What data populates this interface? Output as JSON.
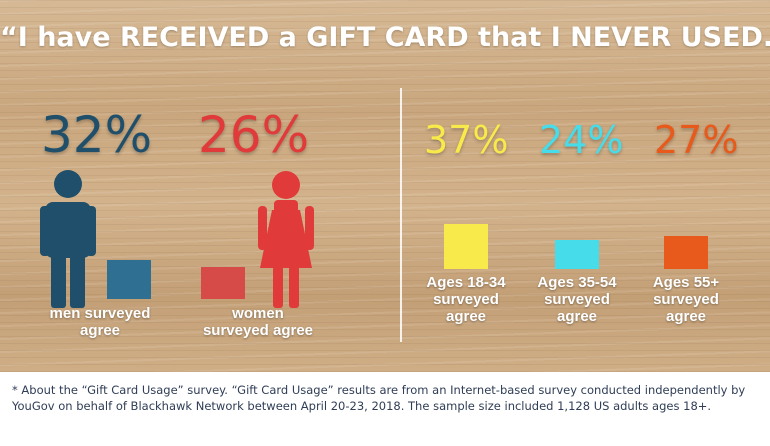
{
  "headline": "“I have RECEIVED a GIFT CARD that I NEVER USED.”",
  "chart_data": [
    {
      "type": "bar",
      "categories": [
        "men surveyed agree",
        "women surveyed agree"
      ],
      "values": [
        32,
        26
      ],
      "value_labels": [
        "32%",
        "26%"
      ],
      "unit": "%",
      "colors": [
        "#1f4f6a",
        "#e13a3a"
      ],
      "bar_colors": [
        "#2f6f92",
        "#d64a48"
      ],
      "icons": [
        "man-figure-icon",
        "woman-figure-icon"
      ]
    },
    {
      "type": "bar",
      "categories": [
        "Ages 18-34 surveyed agree",
        "Ages 35-54 surveyed agree",
        "Ages 55+ surveyed agree"
      ],
      "values": [
        37,
        24,
        27
      ],
      "value_labels": [
        "37%",
        "24%",
        "27%"
      ],
      "unit": "%",
      "colors": [
        "#f7ea4a",
        "#46dcea",
        "#e8591c"
      ]
    }
  ],
  "labels": {
    "men": [
      "men surveyed",
      "agree"
    ],
    "women": [
      "women",
      "surveyed agree"
    ],
    "age1": [
      "Ages 18-34",
      "surveyed",
      "agree"
    ],
    "age2": [
      "Ages 35-54",
      "surveyed",
      "agree"
    ],
    "age3": [
      "Ages 55+",
      "surveyed",
      "agree"
    ]
  },
  "footnote": "* About the “Gift Card Usage” survey. “Gift Card Usage” results are from an Internet-based survey conducted independently by YouGov on behalf of Blackhawk Network between April 20-23, 2018. The sample size included 1,128 US adults ages 18+."
}
